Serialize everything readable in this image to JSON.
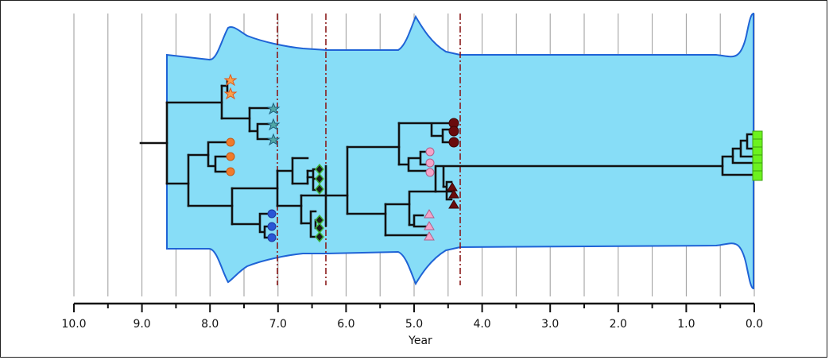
{
  "figure": {
    "xlabel": "Year",
    "x_ticks": [
      "10.0",
      "9.0",
      "8.0",
      "7.0",
      "6.0",
      "5.0",
      "4.0",
      "3.0",
      "2.0",
      "1.0",
      "0.0"
    ],
    "x_range": [
      10.0,
      0.0
    ],
    "grid": "vertical lines every 0.5 years",
    "colors": {
      "band_fill": "#87ddf7",
      "band_stroke": "#1f63d6",
      "tree": "#111111",
      "marker_line": "#8b1a1a",
      "orange": "#f07b2c",
      "teal": "#1f8a8a",
      "blue": "#2a55d6",
      "green_diamond": "#1a1a1a",
      "dark_red": "#6a0c0c",
      "pink": "#f2a3c8",
      "lime": "#6cf21f"
    }
  }
}
